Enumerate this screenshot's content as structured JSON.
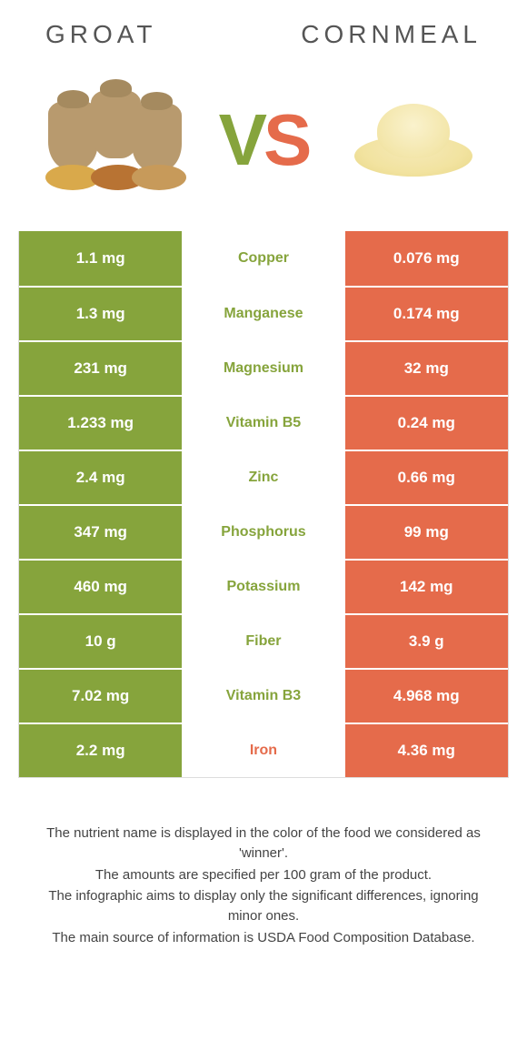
{
  "header": {
    "left_title": "Groat",
    "right_title": "Cornmeal"
  },
  "vs": {
    "v": "V",
    "s": "S"
  },
  "colors": {
    "left": "#86a43c",
    "right": "#e56b4b",
    "mid_left_text": "#86a43c",
    "mid_right_text": "#e56b4b",
    "row_border": "#ffffff",
    "table_border": "#dddddd"
  },
  "table": {
    "rows": [
      {
        "left": "1.1 mg",
        "nutrient": "Copper",
        "right": "0.076 mg",
        "winner": "left"
      },
      {
        "left": "1.3 mg",
        "nutrient": "Manganese",
        "right": "0.174 mg",
        "winner": "left"
      },
      {
        "left": "231 mg",
        "nutrient": "Magnesium",
        "right": "32 mg",
        "winner": "left"
      },
      {
        "left": "1.233 mg",
        "nutrient": "Vitamin B5",
        "right": "0.24 mg",
        "winner": "left"
      },
      {
        "left": "2.4 mg",
        "nutrient": "Zinc",
        "right": "0.66 mg",
        "winner": "left"
      },
      {
        "left": "347 mg",
        "nutrient": "Phosphorus",
        "right": "99 mg",
        "winner": "left"
      },
      {
        "left": "460 mg",
        "nutrient": "Potassium",
        "right": "142 mg",
        "winner": "left"
      },
      {
        "left": "10 g",
        "nutrient": "Fiber",
        "right": "3.9 g",
        "winner": "left"
      },
      {
        "left": "7.02 mg",
        "nutrient": "Vitamin B3",
        "right": "4.968 mg",
        "winner": "left"
      },
      {
        "left": "2.2 mg",
        "nutrient": "Iron",
        "right": "4.36 mg",
        "winner": "right"
      }
    ]
  },
  "footer": {
    "line1": "The nutrient name is displayed in the color of the food we considered as 'winner'.",
    "line2": "The amounts are specified per 100 gram of the product.",
    "line3": "The infographic aims to display only the significant differences, ignoring minor ones.",
    "line4": "The main source of information is USDA Food Composition Database."
  }
}
